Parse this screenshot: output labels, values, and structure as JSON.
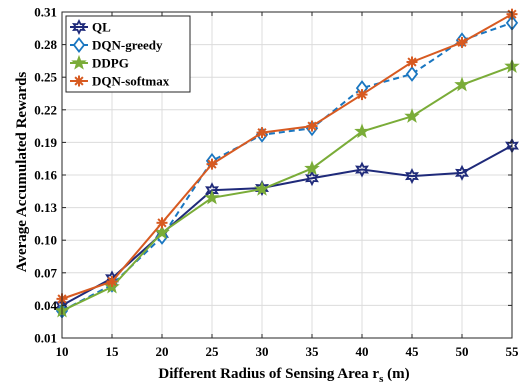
{
  "chart_data": {
    "type": "line",
    "xlabel_main": "Different Radius of Sensing Area r",
    "xlabel_sub": "s",
    "xlabel_tail": " (m)",
    "ylabel": "Average Accumulated Rewards",
    "x": [
      10,
      15,
      20,
      25,
      30,
      35,
      40,
      45,
      50,
      55
    ],
    "xlim": [
      10,
      55
    ],
    "ylim": [
      0.01,
      0.31
    ],
    "xticks": [
      10,
      15,
      20,
      25,
      30,
      35,
      40,
      45,
      50,
      55
    ],
    "yticks": [
      "0.01",
      "0.04",
      "0.07",
      "0.10",
      "0.13",
      "0.16",
      "0.19",
      "0.22",
      "0.25",
      "0.28",
      "0.31"
    ],
    "grid": true,
    "legend_position": "top-left",
    "series": [
      {
        "name": "QL",
        "color": "#1f2a7a",
        "marker": "hexagram",
        "dashed": false,
        "values": [
          0.04,
          0.065,
          0.106,
          0.146,
          0.148,
          0.157,
          0.165,
          0.159,
          0.162,
          0.187
        ]
      },
      {
        "name": "DQN-greedy",
        "color": "#1a76c0",
        "marker": "diamond",
        "dashed": true,
        "values": [
          0.035,
          0.059,
          0.103,
          0.173,
          0.197,
          0.203,
          0.24,
          0.253,
          0.284,
          0.3
        ]
      },
      {
        "name": "DDPG",
        "color": "#7aac38",
        "marker": "star",
        "dashed": false,
        "values": [
          0.035,
          0.057,
          0.107,
          0.139,
          0.147,
          0.166,
          0.2,
          0.214,
          0.243,
          0.26
        ]
      },
      {
        "name": "DQN-softmax",
        "color": "#d75a21",
        "marker": "asterisk",
        "dashed": false,
        "values": [
          0.046,
          0.062,
          0.116,
          0.17,
          0.199,
          0.205,
          0.234,
          0.264,
          0.282,
          0.308
        ]
      }
    ]
  }
}
